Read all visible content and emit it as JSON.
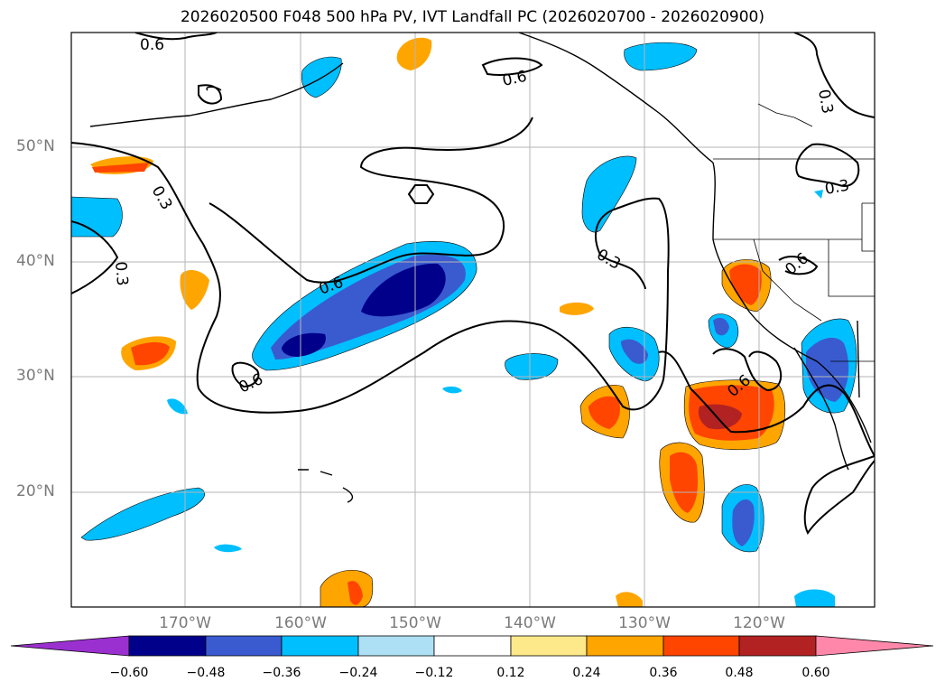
{
  "title": "2026020500 F048 500 hPa PV, IVT Landfall PC (2026020700 - 2026020900)",
  "map": {
    "lat_labels": [
      "50°N",
      "40°N",
      "30°N",
      "20°N"
    ],
    "lon_labels": [
      "170°W",
      "160°W",
      "150°W",
      "140°W",
      "130°W",
      "120°W"
    ],
    "contour_labels": [
      "0.6",
      "0.6",
      "0.3",
      "0.3",
      "0.3",
      "0.6",
      "0.6",
      "0.3",
      "0.6",
      "0.6"
    ]
  },
  "colorbar": {
    "ticks": [
      "−0.60",
      "−0.48",
      "−0.36",
      "−0.24",
      "−0.12",
      "0.12",
      "0.24",
      "0.36",
      "0.48",
      "0.60"
    ],
    "colors": [
      "#9b30d0",
      "#00008b",
      "#3a5bd0",
      "#00bfff",
      "#aee0f5",
      "#ffffff",
      "#fde88a",
      "#ffa500",
      "#ff4500",
      "#b22222",
      "#ff88aa"
    ]
  }
}
